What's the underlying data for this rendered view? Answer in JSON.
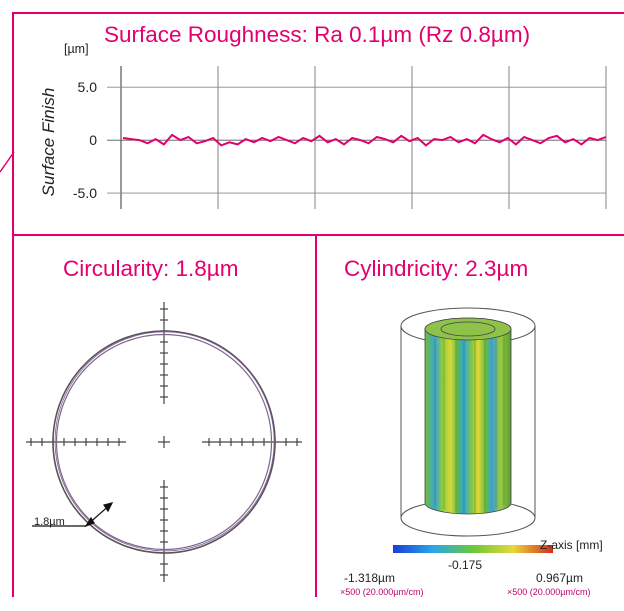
{
  "colors": {
    "accent": "#e2006e",
    "trace": "#e2006e"
  },
  "roughness": {
    "title": "Surface Roughness: Ra 0.1µm (Rz 0.8µm)",
    "unit": "[µm]",
    "ylabel": "Surface Finish"
  },
  "circularity": {
    "title": "Circularity: 1.8µm",
    "callout": "1.8µm"
  },
  "cylindricity": {
    "title": "Cylindricity: 2.3µm",
    "zaxis": "Z-axis [mm]",
    "mid_value": "-0.175",
    "min_value": "-1.318µm",
    "max_value": "0.967µm",
    "scale_left": "×500 (20.000µm/cm)",
    "scale_right": "×500 (20.000µm/cm)"
  },
  "chart_data": [
    {
      "type": "line",
      "title": "Surface Roughness: Ra 0.1µm (Rz 0.8µm)",
      "ylabel": "Surface Finish",
      "yunit": "µm",
      "ylim": [
        -6.5,
        7
      ],
      "yticks": [
        "5.0",
        "0",
        "-5.0"
      ],
      "grid": true,
      "series": [
        {
          "values": [
            0.2,
            0.1,
            0.0,
            -0.3,
            0.1,
            -0.4,
            0.5,
            0.0,
            0.3,
            -0.3,
            -0.1,
            0.2,
            -0.5,
            -0.2,
            -0.4,
            0.1,
            -0.2,
            0.2,
            -0.1,
            0.3,
            0.0,
            -0.3,
            0.2,
            -0.1,
            0.4,
            -0.2,
            0.1,
            -0.4,
            0.2,
            0.0,
            -0.3,
            0.3,
            0.1,
            -0.2,
            0.4,
            -0.1,
            0.2,
            -0.5,
            0.1,
            0.0,
            0.3,
            -0.2,
            0.1,
            -0.3,
            0.5,
            0.1,
            -0.2,
            0.2,
            -0.4,
            0.3,
            0.0,
            -0.3,
            0.2,
            0.4,
            -0.2,
            0.1,
            -0.4,
            0.2,
            0.0,
            0.3
          ]
        }
      ]
    },
    {
      "type": "scatter",
      "title": "Circularity: 1.8µm",
      "deviation_um": 1.8
    },
    {
      "type": "heatmap",
      "title": "Cylindricity: 2.3µm",
      "deviation_um": 2.3,
      "color_scale": {
        "min": -1.318,
        "mid": -0.175,
        "max": 0.967,
        "unit": "µm"
      }
    }
  ]
}
